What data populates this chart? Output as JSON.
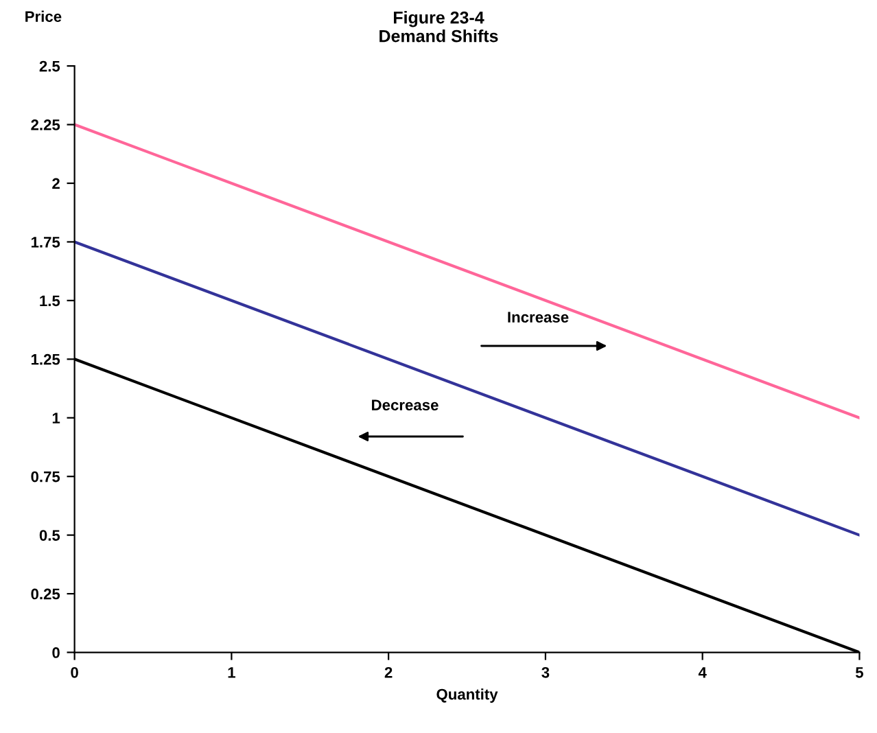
{
  "chart_data": {
    "type": "line",
    "title": "Figure 23-4\nDemand Shifts",
    "xlabel": "Quantity",
    "ylabel": "Price",
    "x": [
      0,
      5
    ],
    "series": [
      {
        "color": "#ff6699",
        "values": [
          2.25,
          1.0
        ]
      },
      {
        "color": "#333399",
        "values": [
          1.75,
          0.5
        ]
      },
      {
        "color": "#000000",
        "values": [
          1.25,
          0
        ]
      }
    ],
    "annotations": [
      "Increase",
      "Decrease"
    ],
    "xlim": [
      0,
      5
    ],
    "xticks": [
      0,
      1,
      2,
      3,
      4,
      5
    ],
    "ylim": [
      0,
      2.5
    ],
    "yticks": [
      0,
      0.25,
      0.5,
      0.75,
      1,
      1.25,
      1.5,
      1.75,
      2,
      2.25,
      2.5
    ],
    "grid": false,
    "legend": false,
    "marker": "none",
    "line_style": "solid"
  }
}
